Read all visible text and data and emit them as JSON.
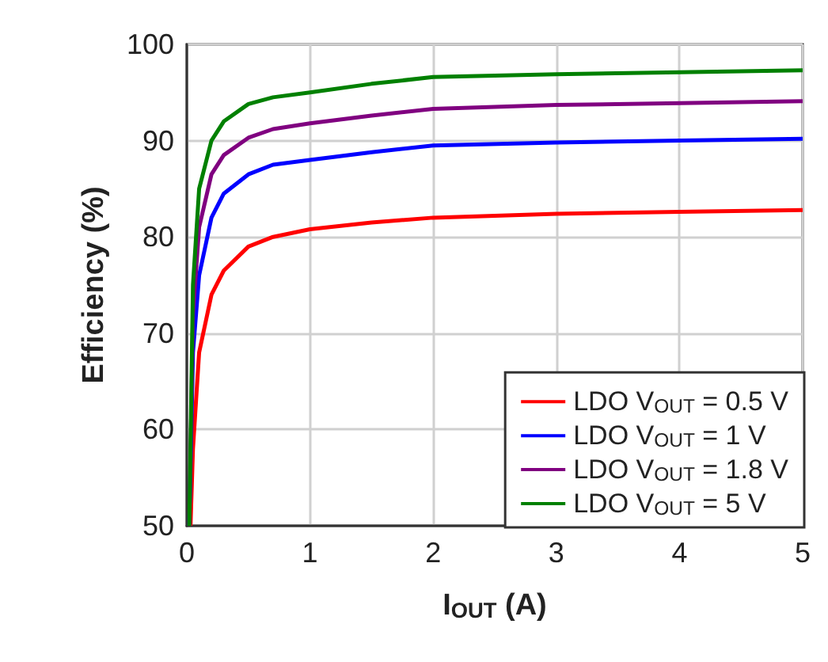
{
  "chart_data": {
    "type": "line",
    "xlabel": "I$_{OUT}$ (A)",
    "ylabel": "Efficiency (%)",
    "xlim": [
      0,
      5
    ],
    "xticks": [
      0,
      1,
      2,
      3,
      4,
      5
    ],
    "ylim": [
      50,
      100
    ],
    "yticks": [
      50,
      60,
      70,
      80,
      90,
      100
    ],
    "grid": true,
    "legend": "bottom right",
    "marker": "none",
    "line_style": "solid",
    "series": [
      {
        "name": "LDO V$_{OUT}$ = 0.5 V",
        "color": "#ff0000",
        "x": [
          0.03,
          0.05,
          0.1,
          0.2,
          0.3,
          0.5,
          0.7,
          1,
          1.5,
          2,
          3,
          4,
          5
        ],
        "values": [
          50,
          58,
          68,
          74,
          76.5,
          79,
          80,
          80.8,
          81.5,
          82,
          82.4,
          82.6,
          82.8
        ]
      },
      {
        "name": "LDO V$_{OUT}$ = 1 V",
        "color": "#0000ff",
        "x": [
          0.02,
          0.05,
          0.1,
          0.2,
          0.3,
          0.5,
          0.7,
          1,
          1.5,
          2,
          3,
          4,
          5
        ],
        "values": [
          50,
          68,
          76,
          82,
          84.5,
          86.5,
          87.5,
          88,
          88.8,
          89.5,
          89.8,
          90,
          90.2
        ]
      },
      {
        "name": "LDO V$_{OUT}$ = 1.8 V",
        "color": "#800080",
        "x": [
          0.02,
          0.05,
          0.1,
          0.2,
          0.3,
          0.5,
          0.7,
          1,
          1.5,
          2,
          3,
          4,
          5
        ],
        "values": [
          50,
          72,
          81,
          86.5,
          88.5,
          90.3,
          91.2,
          91.8,
          92.6,
          93.3,
          93.7,
          93.9,
          94.1
        ]
      },
      {
        "name": "LDO V$_{OUT}$ = 5 V",
        "color": "#008000",
        "x": [
          0.02,
          0.05,
          0.1,
          0.2,
          0.3,
          0.5,
          0.7,
          1,
          1.5,
          2,
          3,
          4,
          5
        ],
        "values": [
          50,
          75,
          85,
          90,
          92,
          93.8,
          94.5,
          95,
          95.9,
          96.6,
          96.9,
          97.1,
          97.3
        ]
      }
    ]
  }
}
